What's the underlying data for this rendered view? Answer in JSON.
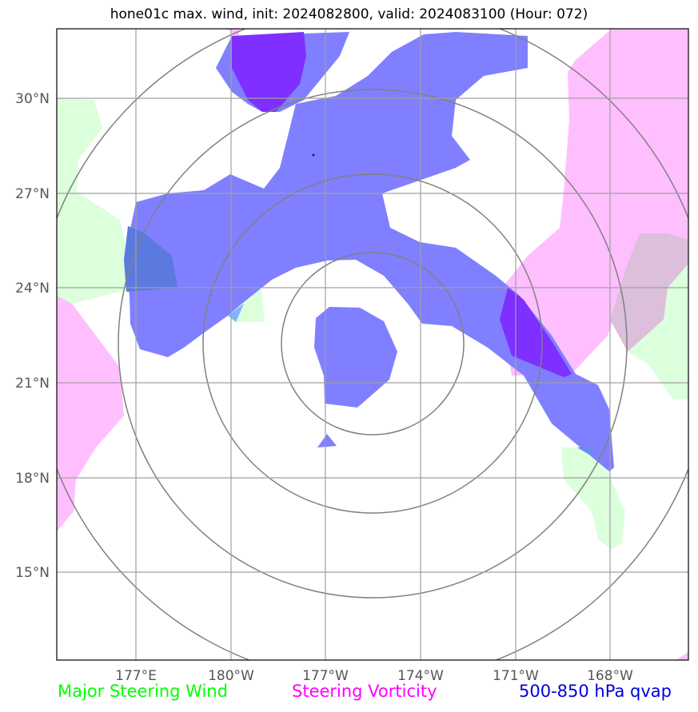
{
  "title": "hone01c max. wind, init: 2024082800, valid: 2024083100 (Hour: 072)",
  "map": {
    "lat_labels": [
      "30°N",
      "27°N",
      "24°N",
      "21°N",
      "18°N",
      "15°N"
    ],
    "lon_labels": [
      "177°E",
      "180°W",
      "177°W",
      "174°W",
      "171°W",
      "168°W"
    ]
  },
  "legend": {
    "wind": "Major Steering Wind",
    "vorticity": "Steering Vorticity",
    "qvap": "500-850 hPa qvap"
  },
  "colors": {
    "wind": "#00ff00",
    "vorticity": "#ff00ff",
    "qvap": "#0000dd",
    "wind_fill": "#dcffdc",
    "vort_fill": "#ffbfff",
    "qvap_fill": "#7f7fff",
    "qvap_strong": "#7f2fff"
  }
}
